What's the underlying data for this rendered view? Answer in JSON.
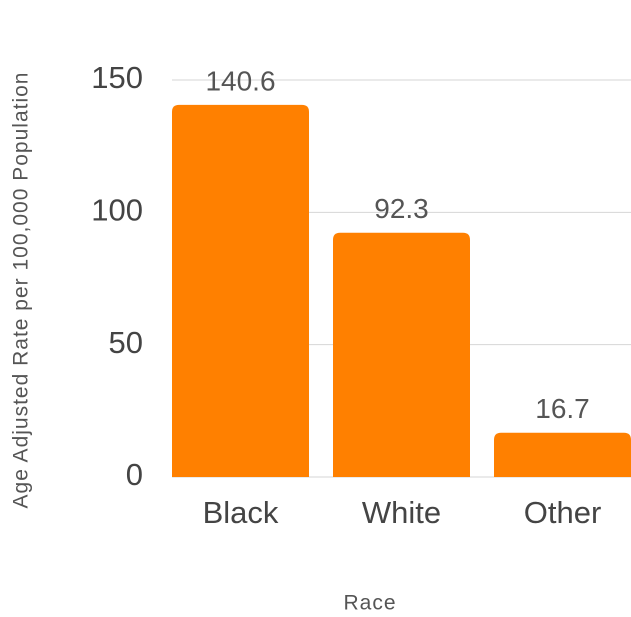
{
  "chart_data": {
    "type": "bar",
    "x_label": "Race",
    "y_label": "Age Adjusted Rate per 100,000 Population",
    "categories": [
      "Black",
      "White",
      "Other"
    ],
    "values": [
      140.6,
      92.3,
      16.7
    ],
    "color": "#ff8000",
    "ylim": [
      0,
      150
    ],
    "yticks": [
      0,
      50,
      100,
      150
    ],
    "grid": true
  }
}
